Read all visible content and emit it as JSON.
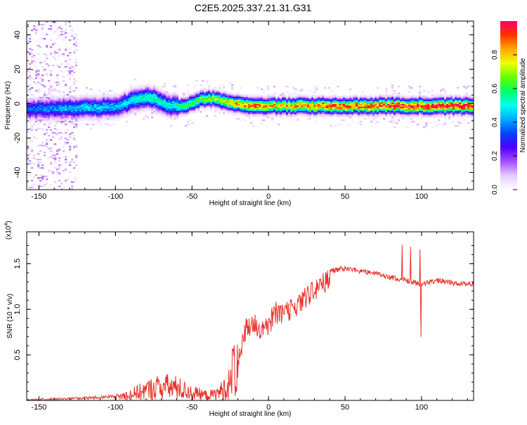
{
  "title": "C2E5.2025.337.21.31.G31",
  "chart_data": [
    {
      "type": "heatmap",
      "xlabel": "Height of straight line (km)",
      "ylabel": "Frequency (Hz)",
      "xlim": [
        -158,
        134
      ],
      "ylim": [
        -50,
        48
      ],
      "x_ticks": [
        -150,
        -100,
        -50,
        0,
        50,
        100
      ],
      "y_ticks": [
        -40,
        -20,
        0,
        20,
        40
      ],
      "colorbar": {
        "label": "Normalized spectral amplitude",
        "range": [
          0,
          1
        ],
        "ticks": [
          "0.0",
          "0.2",
          "0.4",
          "0.6",
          "0.8"
        ],
        "tick_values": [
          0.0,
          0.2,
          0.4,
          0.6,
          0.8
        ],
        "colors": [
          "#ffffff",
          "#e6ccff",
          "#a64dff",
          "#5000ff",
          "#0040ff",
          "#00aaff",
          "#00ffee",
          "#00ff66",
          "#66ff00",
          "#eeff00",
          "#ffaa00",
          "#ff3300",
          "#ff0066"
        ]
      },
      "ridge": {
        "x": [
          -158,
          -140,
          -120,
          -100,
          -90,
          -80,
          -75,
          -65,
          -55,
          -45,
          -35,
          -25,
          -15,
          -5,
          5,
          20,
          40,
          60,
          80,
          100,
          120,
          134
        ],
        "center_hz": [
          -3,
          -2.5,
          -2,
          -1.5,
          2,
          4,
          3,
          -1,
          -1,
          3,
          3,
          1,
          -1,
          -1,
          -1,
          -1,
          -1,
          -1,
          -1,
          -1,
          -1,
          -1
        ],
        "peak_amplitude": [
          0.35,
          0.4,
          0.45,
          0.45,
          0.5,
          0.55,
          0.55,
          0.5,
          0.6,
          0.65,
          0.7,
          0.8,
          0.9,
          0.85,
          0.8,
          0.85,
          0.9,
          0.9,
          0.95,
          0.95,
          1.0,
          1.0
        ]
      }
    },
    {
      "type": "line",
      "xlabel": "Height of straight line (km)",
      "ylabel": "SNR (10 * v/v)",
      "y_multiplier": "(x10",
      "y_multiplier_exp": "4",
      "y_multiplier_close": ")",
      "xlim": [
        -158,
        134
      ],
      "ylim": [
        0,
        1.85
      ],
      "x_ticks": [
        -150,
        -100,
        -50,
        0,
        50,
        100
      ],
      "y_ticks": [
        0.5,
        1.0,
        1.5
      ],
      "y_tick_labels": [
        "0.5",
        "1.0",
        "1.5"
      ],
      "series": [
        {
          "color": "#e8332c",
          "envelope_x": [
            -158,
            -120,
            -100,
            -90,
            -80,
            -70,
            -60,
            -50,
            -40,
            -35,
            -30,
            -25,
            -22,
            -20,
            -15,
            -10,
            -5,
            0,
            5,
            10,
            20,
            30,
            40,
            50,
            60,
            70,
            80,
            90,
            100,
            110,
            120,
            134
          ],
          "envelope_y": [
            0.02,
            0.04,
            0.06,
            0.12,
            0.2,
            0.28,
            0.25,
            0.15,
            0.1,
            0.12,
            0.2,
            0.35,
            0.8,
            0.6,
            0.9,
            1.0,
            0.9,
            0.95,
            1.1,
            1.05,
            1.2,
            1.35,
            1.45,
            1.48,
            1.45,
            1.42,
            1.38,
            1.35,
            1.3,
            1.35,
            1.32,
            1.3
          ]
        }
      ]
    }
  ]
}
